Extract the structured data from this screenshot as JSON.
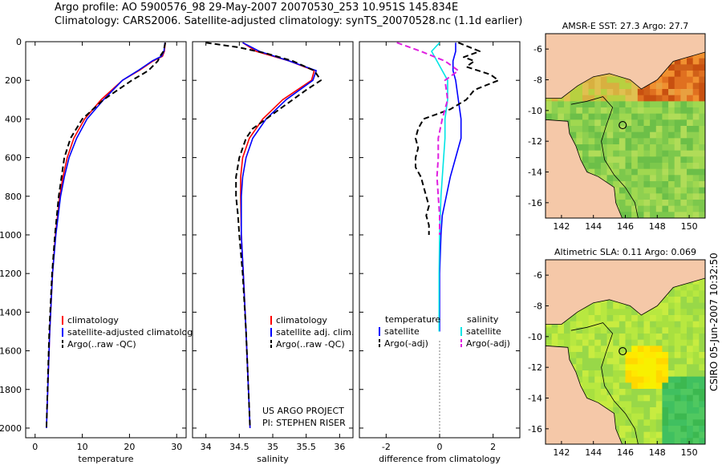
{
  "header": {
    "line1": "Argo profile: AO 5900576_98 29-May-2007 20070530_253 10.951S 145.834E",
    "line2": "Climatology: CARS2006. Satellite-adjusted climatology: synTS_20070528.nc (1.1d earlier)"
  },
  "footer": {
    "stamp": "CSIRO 05-Jun-2007 10:32:50"
  },
  "colors": {
    "clim": "#ff0000",
    "sat": "#0000ff",
    "argo": "#000000",
    "sat_sal": "#00e5e5",
    "argo_sal": "#e020e0",
    "land": "#f5c8a8"
  },
  "chart_data": [
    {
      "type": "line",
      "id": "temperature",
      "xlabel": "temperature",
      "ylabel": "",
      "xlim": [
        -2,
        32
      ],
      "ylim": [
        2050,
        0
      ],
      "xticks": [
        0,
        10,
        20,
        30
      ],
      "yticks": [
        0,
        200,
        400,
        600,
        800,
        1000,
        1200,
        1400,
        1600,
        1800,
        2000
      ],
      "legend": [
        "climatology",
        "satellite-adjusted climatology",
        "Argo(..raw -QC)"
      ],
      "series": [
        {
          "name": "climatology",
          "color": "clim",
          "depth": [
            5,
            50,
            75,
            100,
            150,
            200,
            300,
            400,
            500,
            600,
            700,
            800,
            1000,
            1200,
            1500,
            2000
          ],
          "values": [
            27.6,
            27.4,
            27.0,
            25.0,
            22.0,
            18.5,
            14.0,
            10.5,
            8.2,
            6.8,
            5.9,
            5.2,
            4.3,
            3.7,
            3.1,
            2.4
          ]
        },
        {
          "name": "satellite-adjusted climatology",
          "color": "sat",
          "depth": [
            5,
            50,
            75,
            100,
            150,
            200,
            300,
            400,
            500,
            600,
            700,
            800,
            1000,
            1200,
            1500,
            2000
          ],
          "values": [
            27.5,
            27.3,
            26.8,
            24.8,
            21.8,
            18.5,
            14.5,
            11.0,
            8.8,
            7.2,
            6.2,
            5.4,
            4.4,
            3.7,
            3.1,
            2.4
          ]
        },
        {
          "name": "Argo(..raw -QC)",
          "color": "argo",
          "depth": [
            5,
            50,
            75,
            100,
            150,
            200,
            300,
            400,
            500,
            600,
            700,
            800,
            1000,
            1200,
            1500,
            2000
          ],
          "values": [
            27.6,
            27.2,
            26.5,
            26.0,
            24.0,
            20.5,
            14.5,
            10.0,
            7.5,
            6.2,
            5.6,
            5.0,
            4.2,
            3.6,
            3.0,
            2.4
          ]
        }
      ]
    },
    {
      "type": "line",
      "id": "salinity",
      "xlabel": "salinity",
      "xlim": [
        33.8,
        36.2
      ],
      "ylim": [
        2050,
        0
      ],
      "xticks": [
        34,
        34.5,
        35,
        35.5,
        36
      ],
      "legend": [
        "climatology",
        "satellite adj. clim.",
        "Argo(..raw -QC)"
      ],
      "annotation": [
        "US ARGO PROJECT",
        "PI: STEPHEN RISER"
      ],
      "series": [
        {
          "name": "climatology",
          "color": "clim",
          "depth": [
            5,
            50,
            100,
            150,
            200,
            300,
            400,
            500,
            600,
            700,
            800,
            1000,
            1200,
            1500,
            2000
          ],
          "values": [
            34.55,
            34.75,
            35.25,
            35.62,
            35.58,
            35.15,
            34.85,
            34.65,
            34.55,
            34.52,
            34.52,
            34.53,
            34.56,
            34.6,
            34.66
          ]
        },
        {
          "name": "satellite adj. clim.",
          "color": "sat",
          "depth": [
            5,
            50,
            100,
            150,
            200,
            300,
            400,
            500,
            600,
            700,
            800,
            1000,
            1200,
            1500,
            2000
          ],
          "values": [
            34.55,
            34.8,
            35.25,
            35.65,
            35.6,
            35.2,
            34.9,
            34.7,
            34.6,
            34.55,
            34.53,
            34.53,
            34.56,
            34.6,
            34.66
          ]
        },
        {
          "name": "Argo(..raw -QC)",
          "color": "argo",
          "depth": [
            5,
            30,
            60,
            100,
            150,
            200,
            250,
            300,
            350,
            400,
            450,
            500,
            600,
            700,
            800,
            900,
            1000,
            1200,
            1500,
            2000
          ],
          "values": [
            34.0,
            34.5,
            34.9,
            35.3,
            35.62,
            35.72,
            35.5,
            35.3,
            35.1,
            34.9,
            34.7,
            34.6,
            34.5,
            34.45,
            34.45,
            34.48,
            34.5,
            34.55,
            34.6,
            34.66
          ]
        }
      ]
    },
    {
      "type": "line",
      "id": "difference",
      "xlabel": "difference from climatology",
      "xlim": [
        -3,
        3
      ],
      "ylim": [
        2050,
        0
      ],
      "xticks": [
        -2,
        0,
        2
      ],
      "legend_left": [
        "temperature",
        "satellite",
        "Argo(-adj)"
      ],
      "legend_right": [
        "salinity",
        "satellite",
        "Argo(-adj)"
      ],
      "series": [
        {
          "name": "temperature satellite",
          "color": "sat",
          "depth": [
            5,
            50,
            100,
            150,
            200,
            300,
            400,
            500,
            600,
            700,
            800,
            900,
            1000,
            1200,
            1400,
            1500
          ],
          "values": [
            0.6,
            0.6,
            0.5,
            0.5,
            0.6,
            0.7,
            0.8,
            0.8,
            0.6,
            0.4,
            0.25,
            0.1,
            0.05,
            0.0,
            0.0,
            0.0
          ]
        },
        {
          "name": "temperature Argo(-adj)",
          "color": "argo",
          "depth": [
            5,
            50,
            80,
            100,
            130,
            170,
            200,
            250,
            300,
            350,
            400,
            450,
            500,
            550,
            600,
            650,
            700,
            800,
            850,
            900,
            950,
            1000
          ],
          "values": [
            0.7,
            1.5,
            0.9,
            1.3,
            1.0,
            1.9,
            2.2,
            1.3,
            1.0,
            0.4,
            -0.6,
            -0.8,
            -0.9,
            -0.8,
            -0.9,
            -0.9,
            -0.7,
            -0.5,
            -0.4,
            -0.5,
            -0.4,
            -0.4
          ]
        },
        {
          "name": "salinity satellite",
          "color": "sat_sal",
          "depth": [
            5,
            50,
            100,
            150,
            200,
            300,
            400,
            500,
            600,
            800,
            1000,
            1200,
            1400,
            1500
          ],
          "values": [
            0.0,
            -0.3,
            -0.1,
            0.1,
            0.3,
            0.3,
            0.2,
            0.2,
            0.15,
            0.05,
            0.0,
            -0.02,
            -0.02,
            -0.02
          ]
        },
        {
          "name": "salinity Argo(-adj)",
          "color": "argo_sal",
          "depth": [
            5,
            50,
            100,
            150,
            200,
            300,
            400,
            500,
            600,
            700,
            800,
            900,
            1000
          ],
          "values": [
            -1.6,
            -0.7,
            0.2,
            0.7,
            0.2,
            0.3,
            0.1,
            -0.05,
            -0.05,
            -0.1,
            -0.05,
            0.0,
            0.0
          ]
        }
      ]
    },
    {
      "type": "heatmap",
      "id": "sst-map",
      "title": "AMSR-E SST: 27.3 Argo: 27.7",
      "xlim": [
        141,
        151
      ],
      "ylim": [
        -17,
        -5
      ],
      "xticks": [
        142,
        144,
        146,
        148,
        150
      ],
      "yticks": [
        -6,
        -8,
        -10,
        -12,
        -14,
        -16
      ],
      "marker": [
        145.834,
        -10.951
      ]
    },
    {
      "type": "heatmap",
      "id": "sla-map",
      "title": "Altimetric SLA: 0.11 Argo: 0.069",
      "xlim": [
        141,
        151
      ],
      "ylim": [
        -17,
        -5
      ],
      "xticks": [
        142,
        144,
        146,
        148,
        150
      ],
      "yticks": [
        -6,
        -8,
        -10,
        -12,
        -14,
        -16
      ],
      "marker": [
        145.834,
        -10.951
      ]
    }
  ]
}
